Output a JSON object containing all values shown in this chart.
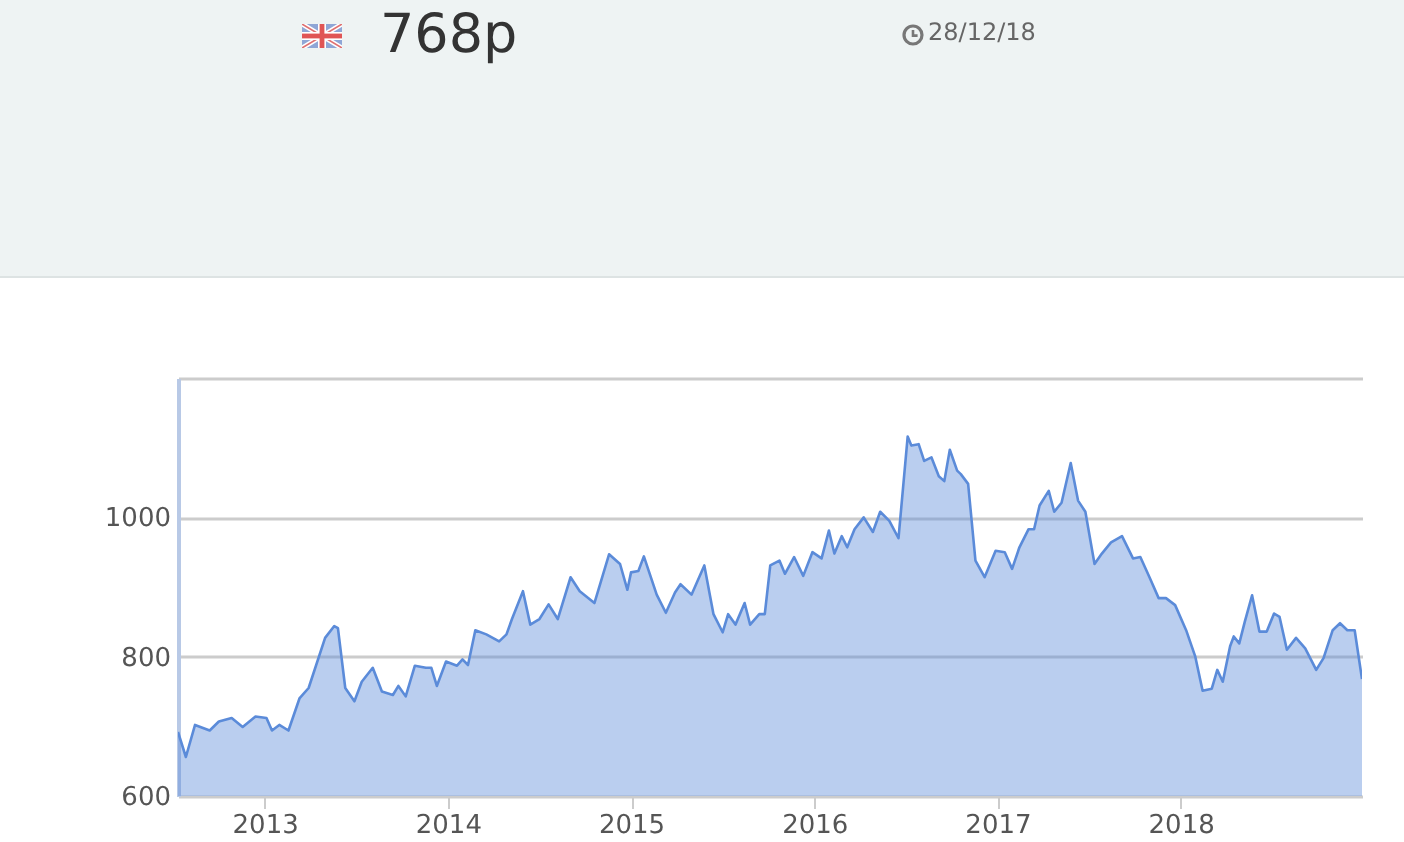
{
  "chart_data": {
    "type": "area",
    "annotations": [
      "768p",
      "28/12/18"
    ],
    "series": [
      {
        "color": "#5b8bd9",
        "x": [
          2012.527,
          2012.57,
          2012.62,
          2012.7,
          2012.75,
          2012.82,
          2012.88,
          2012.95,
          2013.01,
          2013.04,
          2013.08,
          2013.13,
          2013.19,
          2013.24,
          2013.28,
          2013.33,
          2013.38,
          2013.4,
          2013.44,
          2013.49,
          2013.53,
          2013.59,
          2013.64,
          2013.7,
          2013.73,
          2013.77,
          2013.82,
          2013.88,
          2013.91,
          2013.94,
          2013.99,
          2014.05,
          2014.08,
          2014.11,
          2014.15,
          2014.21,
          2014.28,
          2014.32,
          2014.35,
          2014.41,
          2014.45,
          2014.5,
          2014.55,
          2014.6,
          2014.67,
          2014.72,
          2014.8,
          2014.88,
          2014.94,
          2014.98,
          2015.0,
          2015.04,
          2015.07,
          2015.14,
          2015.19,
          2015.24,
          2015.27,
          2015.33,
          2015.4,
          2015.45,
          2015.5,
          2015.53,
          2015.57,
          2015.62,
          2015.65,
          2015.7,
          2015.73,
          2015.76,
          2015.81,
          2015.84,
          2015.89,
          2015.94,
          2015.99,
          2016.04,
          2016.08,
          2016.11,
          2016.15,
          2016.18,
          2016.22,
          2016.27,
          2016.32,
          2016.36,
          2016.41,
          2016.46,
          2016.51,
          2016.53,
          2016.57,
          2016.6,
          2016.64,
          2016.68,
          2016.71,
          2016.74,
          2016.78,
          2016.8,
          2016.84,
          2016.88,
          2016.93,
          2016.99,
          2017.04,
          2017.08,
          2017.12,
          2017.17,
          2017.2,
          2017.23,
          2017.28,
          2017.31,
          2017.35,
          2017.4,
          2017.44,
          2017.48,
          2017.53,
          2017.57,
          2017.62,
          2017.68,
          2017.74,
          2017.78,
          2017.83,
          2017.88,
          2017.92,
          2017.97,
          2018.03,
          2018.08,
          2018.12,
          2018.17,
          2018.2,
          2018.23,
          2018.27,
          2018.29,
          2018.32,
          2018.35,
          2018.39,
          2018.43,
          2018.47,
          2018.51,
          2018.54,
          2018.58,
          2018.63,
          2018.68,
          2018.74,
          2018.78,
          2018.83,
          2018.87,
          2018.91,
          2018.95,
          2018.99
        ],
        "values": [
          692,
          656,
          702,
          694,
          707,
          712,
          699,
          714,
          712,
          694,
          702,
          694,
          740,
          755,
          787,
          827,
          844,
          841,
          755,
          736,
          764,
          784,
          750,
          745,
          758,
          743,
          787,
          784,
          784,
          758,
          793,
          787,
          796,
          788,
          838,
          832,
          822,
          832,
          854,
          894,
          846,
          854,
          875,
          854,
          914,
          894,
          877,
          947,
          933,
          896,
          921,
          923,
          944,
          889,
          863,
          892,
          904,
          889,
          931,
          861,
          835,
          861,
          846,
          877,
          846,
          861,
          861,
          931,
          938,
          919,
          943,
          916,
          950,
          941,
          981,
          948,
          973,
          957,
          983,
          1000,
          979,
          1008,
          995,
          970,
          1116,
          1103,
          1105,
          1081,
          1086,
          1059,
          1052,
          1097,
          1067,
          1062,
          1048,
          938,
          914,
          952,
          950,
          926,
          957,
          983,
          983,
          1017,
          1038,
          1008,
          1021,
          1078,
          1024,
          1008,
          933,
          948,
          964,
          973,
          941,
          943,
          914,
          884,
          884,
          874,
          838,
          800,
          751,
          754,
          781,
          764,
          815,
          829,
          819,
          850,
          888,
          836,
          836,
          862,
          857,
          810,
          827,
          812,
          781,
          798,
          838,
          848,
          838,
          838,
          768
        ]
      }
    ],
    "xlim": [
      2012.527,
      2018.99
    ],
    "xticks": [
      2013,
      2014,
      2015,
      2016,
      2017,
      2018
    ],
    "ylim": [
      600,
      1200
    ],
    "yticks": [
      600,
      800,
      1000,
      {
        "value": 1200,
        "label": null
      }
    ],
    "grid": "y"
  }
}
